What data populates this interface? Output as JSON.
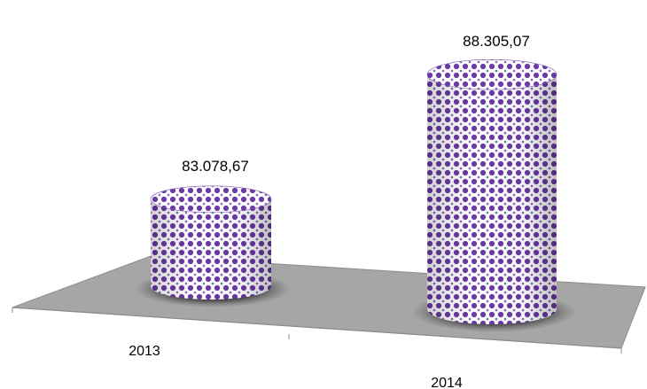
{
  "chart_data": {
    "type": "bar",
    "style": "3d-cylinder",
    "categories": [
      "2013",
      "2014"
    ],
    "series": [
      {
        "values": [
          83078.67,
          88305.07
        ]
      }
    ],
    "data_labels": [
      "83.078,67",
      "88.305,07"
    ],
    "title": "",
    "xlabel": "",
    "ylabel": "",
    "ylim": [
      80000,
      89000
    ],
    "grid": false,
    "legend": "none",
    "colors": {
      "bar_pattern_fg": "#6a3aa6",
      "bar_pattern_bg": "#ffffff",
      "floor": "#a6a6a6",
      "floor_edge": "#8c8c8c"
    }
  }
}
